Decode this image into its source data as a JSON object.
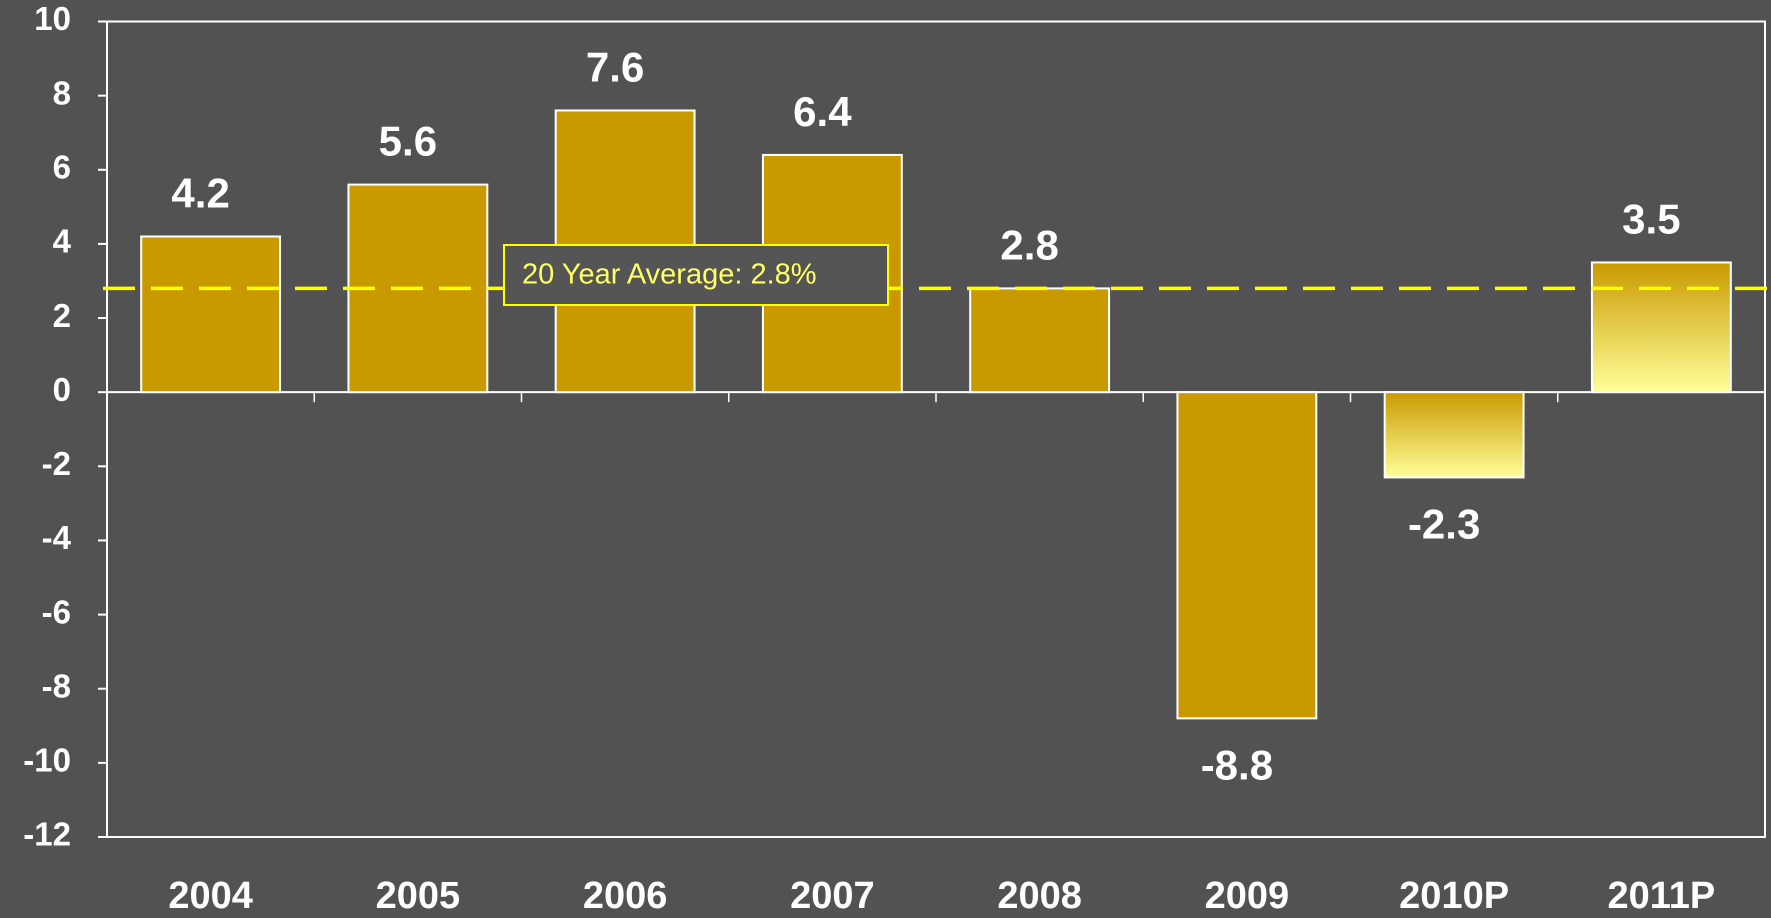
{
  "chart_data": {
    "type": "bar",
    "categories": [
      "2004",
      "2005",
      "2006",
      "2007",
      "2008",
      "2009",
      "2010P",
      "2011P"
    ],
    "values": [
      4.2,
      5.6,
      7.6,
      6.4,
      2.8,
      -8.8,
      -2.3,
      3.5
    ],
    "color": "#c99a00",
    "gradient_color": "#ffff99",
    "bar_fills": [
      "solid",
      "solid",
      "solid",
      "solid",
      "solid",
      "solid",
      "gradient",
      "gradient"
    ],
    "ylim": [
      -12,
      10
    ],
    "yticks": [
      -12,
      -10,
      -8,
      -6,
      -4,
      -2,
      0,
      2,
      4,
      6,
      8,
      10
    ],
    "reference_line": {
      "value": 2.8,
      "label": "20 Year Average: 2.8%",
      "color": "#ffff00"
    }
  }
}
